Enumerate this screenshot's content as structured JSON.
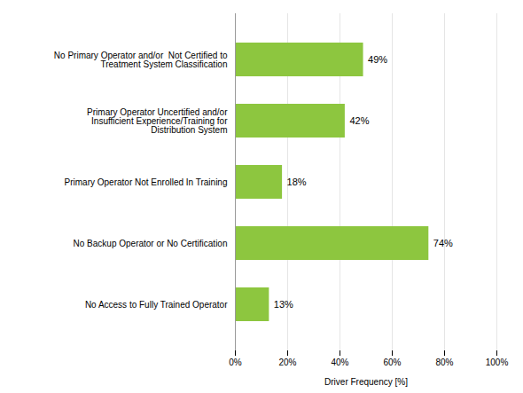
{
  "chart_data": {
    "type": "bar",
    "orientation": "horizontal",
    "categories": [
      "No Access to Fully Trained Operator",
      "No Backup Operator or No Certification",
      "Primary Operator Not Enrolled In Training",
      "Primary Operator Uncertified and/or\nInsufficient Experience/Training for\nDistribution System",
      "No Primary Operator and/or  Not Certified to\nTreatment System Classification"
    ],
    "values": [
      13,
      74,
      18,
      42,
      49
    ],
    "value_labels": [
      "13%",
      "74%",
      "18%",
      "42%",
      "49%"
    ],
    "data_labels": true,
    "color": "#8DC63F",
    "xlabel": "Driver Frequency [%]",
    "xlim": [
      0,
      100
    ],
    "xticks": [
      {
        "value": 0,
        "label": "0%"
      },
      {
        "value": 20,
        "label": "20%"
      },
      {
        "value": 40,
        "label": "40%"
      },
      {
        "value": 60,
        "label": "60%"
      },
      {
        "value": 80,
        "label": "80%"
      },
      {
        "value": 100,
        "label": "100%"
      }
    ],
    "grid": true
  }
}
